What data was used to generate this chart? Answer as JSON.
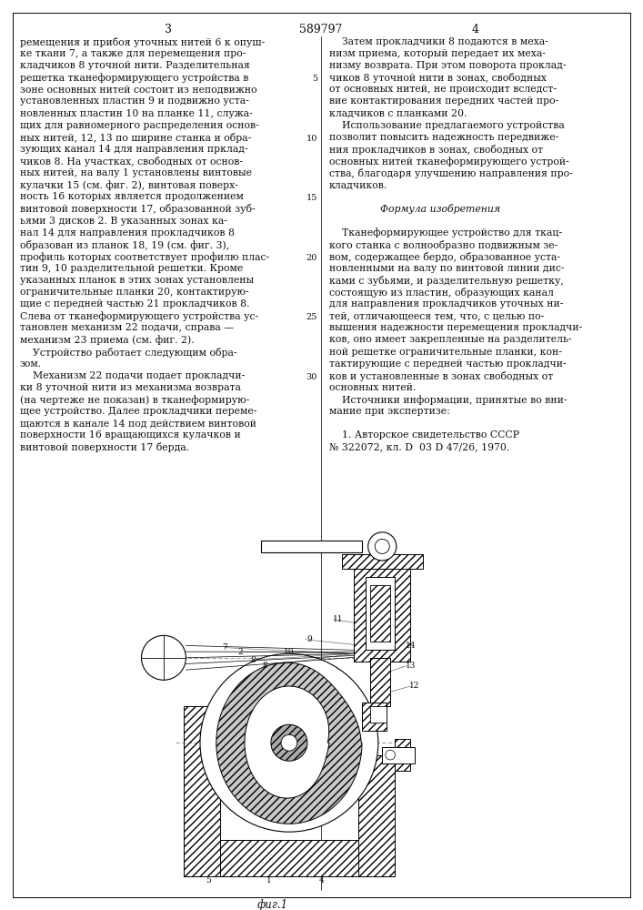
{
  "patent_number": "589797",
  "page_left": "3",
  "page_right": "4",
  "bg_color": "#ffffff",
  "text_color": "#111111",
  "left_col_lines": [
    "ремещения и прибоя уточных нитей 6 к опуш-",
    "ке ткани 7, а также для перемещения про-",
    "кладчиков 8 уточной нити. Разделительная",
    "решетка тканеформирующего устройства в",
    "зоне основных нитей состоит из неподвижно",
    "установленных пластин 9 и подвижно уста-",
    "новленных пластин 10 на планке 11, служа-",
    "щих для равномерного распределения основ-",
    "ных нитей, 12, 13 по ширине станка и обра-",
    "зующих канал 14 для направления прклад-",
    "чиков 8. На участках, свободных от основ-",
    "ных нитей, на валу 1 установлены винтовые",
    "кулачки 15 (см. фиг. 2), винтовая поверх-",
    "ность 16 которых является продолжением",
    "винтовой поверхности 17, образованной зуб-",
    "ьями 3 дисков 2. В указанных зонах ка-",
    "нал 14 для направления прокладчиков 8",
    "образован из планок 18, 19 (см. фиг. 3),",
    "профиль которых соответствует профилю плас-",
    "тин 9, 10 разделительной решетки. Кроме",
    "указанных планок в этих зонах установлены",
    "ограничительные планки 20, контактирую-",
    "щие с передней частью 21 прокладчиков 8.",
    "Слева от тканеформирующего устройства ус-",
    "тановлен механизм 22 подачи, справа —",
    "механизм 23 приема (см. фиг. 2).",
    "    Устройство работает следующим обра-",
    "зом.",
    "    Механизм 22 подачи подает прокладчи-",
    "ки 8 уточной нити из механизма возврата",
    "(на чертеже не показан) в тканеформирую-",
    "щее устройство. Далее прокладчики переме-",
    "щаются в канале 14 под действием винтовой",
    "поверхности 16 вращающихся кулачков и",
    "винтовой поверхности 17 берда."
  ],
  "right_col_lines": [
    "    Затем прокладчики 8 подаются в меха-",
    "низм приема, который передает их меха-",
    "низму возврата. При этом поворота проклад-",
    "чиков 8 уточной нити в зонах, свободных",
    "от основных нитей, не происходит вследст-",
    "вие контактирования передних частей про-",
    "кладчиков с планками 20.",
    "    Использование предлагаемого устройства",
    "позволит повысить надежность передвиже-",
    "ния прокладчиков в зонах, свободных от",
    "основных нитей тканеформирующего устрой-",
    "ства, благодаря улучшению направления про-",
    "кладчиков.",
    "",
    "                Формула изобретения",
    "",
    "    Тканеформирующее устройство для ткац-",
    "кого станка с волнообразно подвижным зе-",
    "вом, содержащее бердо, образованное уста-",
    "новленными на валу по винтовой линии дис-",
    "ками с зубьями, и разделительную решетку,",
    "состоящую из пластин, образующих канал",
    "для направления прокладчиков уточных ни-",
    "тей, отличающееся тем, что, с целью по-",
    "вышения надежности перемещения прокладчи-",
    "ков, оно имеет закрепленные на разделитель-",
    "ной решетке ограничительные планки, кон-",
    "тактирующие с передней частью прокладчи-",
    "ков и установленные в зонах свободных от",
    "основных нитей.",
    "    Источники информации, принятые во вни-",
    "мание при экспертизе:",
    "",
    "    1. Авторское свидетельство СССР",
    "№ 322072, кл. D  03 D 47/26, 1970."
  ],
  "line_nums": [
    5,
    10,
    15,
    20,
    25,
    30
  ],
  "line_num_rows": [
    4,
    9,
    14,
    19,
    24,
    29
  ],
  "fig_caption": "фиг.1"
}
